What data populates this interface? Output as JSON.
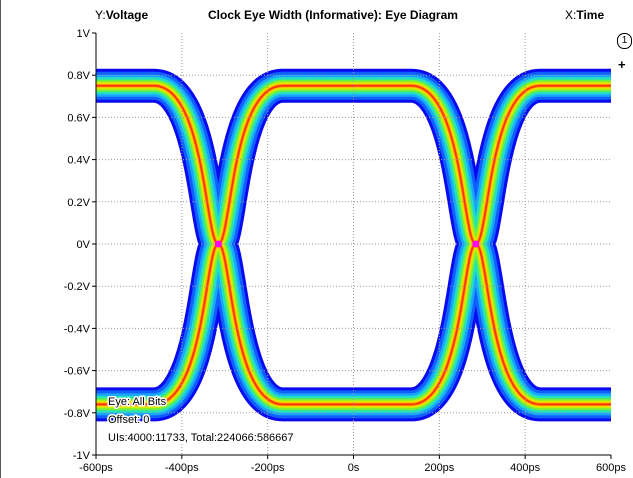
{
  "header": {
    "y_prefix": "Y:",
    "y_name": "Voltage",
    "title": "Clock Eye Width (Informative): Eye Diagram",
    "x_prefix": "X:",
    "x_name": "Time"
  },
  "overlay": {
    "eye": "Eye: All Bits",
    "offset": "Offset: 0",
    "uis": "UIs:4000:11733, Total:224066:586667"
  },
  "side_controls": {
    "marker_button": "1",
    "add_button": "+"
  },
  "colors": {
    "background": "#ffffff",
    "grid": "#9a9a9a",
    "axis": "#000000",
    "marker": "#ff00ff",
    "density_scale": [
      "#0a0af0",
      "#1060ff",
      "#19a6ff",
      "#22e0c0",
      "#6ff040",
      "#c8f000",
      "#ffd000",
      "#ff8000",
      "#ff3010"
    ]
  },
  "chart_data": {
    "type": "heatmap",
    "title": "Clock Eye Width (Informative): Eye Diagram",
    "xlabel": "Time",
    "ylabel": "Voltage",
    "xlim": [
      -600,
      600
    ],
    "ylim": [
      -1,
      1
    ],
    "x_unit": "ps",
    "y_unit": "V",
    "x_ticks": [
      "-600ps",
      "-400ps",
      "-200ps",
      "0s",
      "200ps",
      "400ps",
      "600ps"
    ],
    "y_ticks": [
      "1V",
      "0.8V",
      "0.6V",
      "0.4V",
      "0.2V",
      "0V",
      "-0.2V",
      "-0.4V",
      "-0.6V",
      "-0.8V",
      "-1V"
    ],
    "grid": true,
    "signal_levels": [
      0.75,
      -0.76
    ],
    "crossings_ps": [
      -315,
      285
    ],
    "center_markers": [
      {
        "x": -315,
        "y": 0
      },
      {
        "x": 285,
        "y": 0
      }
    ]
  }
}
